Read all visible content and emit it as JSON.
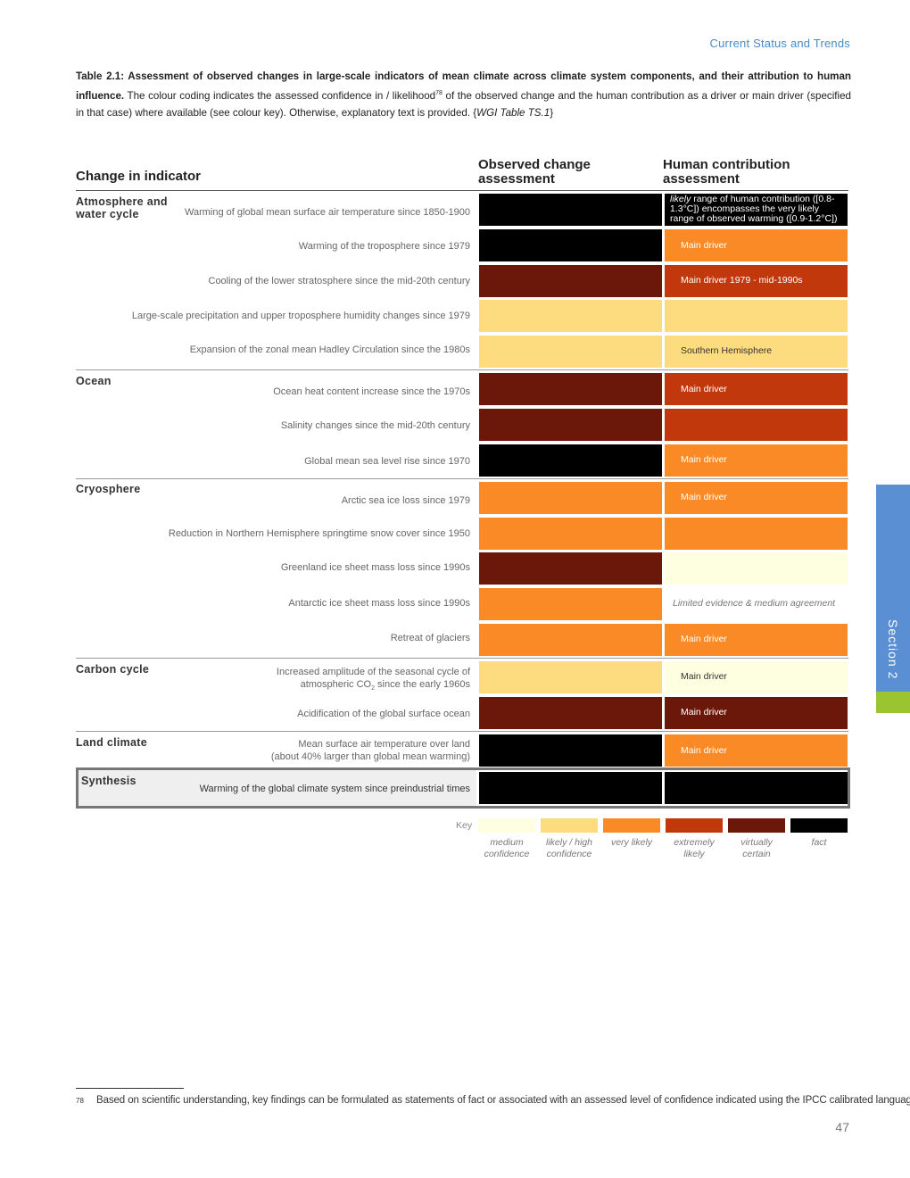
{
  "header": {
    "section_title": "Current Status and Trends"
  },
  "caption": {
    "lead": "Table 2.1: Assessment of observed changes in large-scale indicators of mean climate across climate system components, and their attribution to human influence.",
    "body": " The colour coding indicates the assessed confidence in / likelihood",
    "sup": "78",
    "body2": " of the observed change and the human contribution as a driver or main driver (specified in that case) where available (see colour key). Otherwise, explanatory text is provided. {",
    "ref": "WGI Table TS.1",
    "end": "}"
  },
  "columns": {
    "indicator": "Change in indicator",
    "observed": "Observed change assessment",
    "human": "Human contribution assessment"
  },
  "groups": [
    {
      "label": "Atmosphere and water cycle"
    },
    {
      "label": "Ocean"
    },
    {
      "label": "Cryosphere"
    },
    {
      "label": "Carbon cycle"
    },
    {
      "label": "Land climate"
    },
    {
      "label": "Synthesis"
    }
  ],
  "rows": [
    {
      "indicator": "Warming of global mean surface air temperature since 1850-1900",
      "observed_level": "fact",
      "human_level": "fact",
      "human_text_italic": "likely",
      "human_text": " range of human contribution ([0.8-1.3°C]) encompasses the very likely range of observed warming ([0.9-1.2°C])"
    },
    {
      "indicator": "Warming of the troposphere since 1979",
      "observed_level": "fact",
      "human_level": "very likely",
      "human_text": "Main driver"
    },
    {
      "indicator": "Cooling of the lower stratosphere since the mid-20th century",
      "observed_level": "virtually certain",
      "human_level": "extremely likely",
      "human_text": "Main driver 1979 - mid-1990s"
    },
    {
      "indicator": "Large-scale precipitation and upper troposphere humidity changes since 1979",
      "observed_level": "likely / high confidence",
      "human_level": "likely / high confidence",
      "human_text": ""
    },
    {
      "indicator": "Expansion of the zonal mean Hadley Circulation since the 1980s",
      "observed_level": "likely / high confidence",
      "human_level": "likely / high confidence",
      "human_text": "Southern Hemisphere"
    },
    {
      "indicator": "Ocean heat content increase since the 1970s",
      "observed_level": "virtually certain",
      "human_level": "extremely likely",
      "human_text": "Main driver"
    },
    {
      "indicator": "Salinity changes since the mid-20th century",
      "observed_level": "virtually certain",
      "human_level": "extremely likely",
      "human_text": ""
    },
    {
      "indicator": "Global mean sea level rise since 1970",
      "observed_level": "fact",
      "human_level": "very likely",
      "human_text": "Main driver"
    },
    {
      "indicator": "Arctic sea ice loss since 1979",
      "observed_level": "very likely",
      "human_level": "very likely",
      "human_text": "Main driver"
    },
    {
      "indicator": "Reduction in Northern Hemisphere springtime snow cover since 1950",
      "observed_level": "very likely",
      "human_level": "very likely",
      "human_text": ""
    },
    {
      "indicator": "Greenland ice sheet mass loss since 1990s",
      "observed_level": "virtually certain",
      "human_level": "medium confidence",
      "human_text": ""
    },
    {
      "indicator": "Antarctic ice sheet mass loss since 1990s",
      "observed_level": "very likely",
      "human_level": "none",
      "human_text": "Limited evidence & medium agreement"
    },
    {
      "indicator": "Retreat of glaciers",
      "observed_level": "very likely",
      "human_level": "very likely",
      "human_text": "Main driver"
    },
    {
      "indicator_line1": "Increased amplitude of the seasonal cycle of",
      "indicator_line2": "atmospheric CO",
      "indicator_sub": "2",
      "indicator_line2_end": " since the early 1960s",
      "observed_level": "likely / high confidence",
      "human_level": "medium confidence",
      "human_text": "Main driver"
    },
    {
      "indicator": "Acidification of the global surface ocean",
      "observed_level": "virtually certain",
      "human_level": "virtually certain",
      "human_text": "Main driver"
    },
    {
      "indicator_line1": "Mean surface air temperature over land",
      "indicator_line2": "(about 40% larger than global mean warming)",
      "observed_level": "fact",
      "human_level": "very likely",
      "human_text": "Main driver"
    },
    {
      "indicator": "Warming of the global climate system since preindustrial times",
      "observed_level": "fact",
      "human_level": "fact",
      "human_text": ""
    }
  ],
  "key": {
    "label": "Key",
    "items": [
      {
        "name": "medium confidence",
        "line1": "medium",
        "line2": "confidence",
        "color": "#fefee0"
      },
      {
        "name": "likely / high confidence",
        "line1": "likely / high",
        "line2": "confidence",
        "color": "#fcdc7e"
      },
      {
        "name": "very likely",
        "line1": "very likely",
        "line2": "",
        "color": "#f98a25"
      },
      {
        "name": "extremely likely",
        "line1": "extremely",
        "line2": "likely",
        "color": "#c1380c"
      },
      {
        "name": "virtually certain",
        "line1": "virtually",
        "line2": "certain",
        "color": "#6b180b"
      },
      {
        "name": "fact",
        "line1": "fact",
        "line2": "",
        "color": "#000000"
      }
    ]
  },
  "footnote": {
    "number": "78",
    "text": "Based on scientific understanding, key findings can be formulated as statements of fact or associated with an assessed level of confidence indicated using the IPCC calibrated language."
  },
  "page_number": "47",
  "side_tab": {
    "label": "Section 2"
  }
}
